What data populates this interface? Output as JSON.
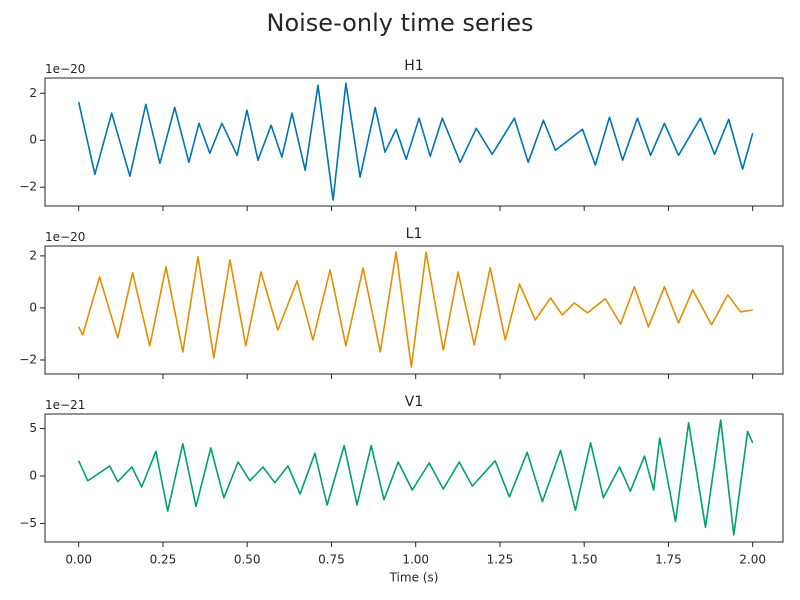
{
  "title": "Noise-only time series",
  "chart_data": [
    {
      "type": "line",
      "title": "H1",
      "offset_label": "1e−20",
      "color": "#0173b2",
      "xlim": [
        -0.1,
        2.09
      ],
      "ylim": [
        -2.8,
        2.65
      ],
      "yticks": [
        {
          "value": -2,
          "label": "−2"
        },
        0,
        2
      ],
      "x": [
        0.0,
        0.048,
        0.098,
        0.152,
        0.199,
        0.241,
        0.285,
        0.327,
        0.357,
        0.389,
        0.425,
        0.47,
        0.499,
        0.532,
        0.571,
        0.603,
        0.633,
        0.672,
        0.71,
        0.755,
        0.793,
        0.835,
        0.88,
        0.909,
        0.942,
        0.972,
        1.01,
        1.043,
        1.079,
        1.132,
        1.18,
        1.227,
        1.293,
        1.334,
        1.379,
        1.415,
        1.495,
        1.533,
        1.575,
        1.614,
        1.658,
        1.697,
        1.738,
        1.78,
        1.845,
        1.887,
        1.929,
        1.97,
        2.0
      ],
      "values": [
        1.62,
        -1.45,
        1.15,
        -1.53,
        1.53,
        -0.98,
        1.4,
        -0.94,
        0.72,
        -0.55,
        0.72,
        -0.64,
        1.28,
        -0.85,
        0.64,
        -0.72,
        1.15,
        -1.28,
        2.34,
        -2.55,
        2.43,
        -1.57,
        1.4,
        -0.51,
        0.47,
        -0.81,
        0.94,
        -0.68,
        0.94,
        -0.94,
        0.51,
        -0.6,
        0.94,
        -0.94,
        0.85,
        -0.43,
        0.47,
        -1.06,
        0.98,
        -0.85,
        0.94,
        -0.64,
        0.72,
        -0.64,
        0.94,
        -0.6,
        0.89,
        -1.23,
        0.3
      ]
    },
    {
      "type": "line",
      "title": "L1",
      "offset_label": "1e−20",
      "color": "#de8f05",
      "xlim": [
        -0.1,
        2.09
      ],
      "ylim": [
        -2.54,
        2.38
      ],
      "yticks": [
        {
          "value": -2,
          "label": "−2"
        },
        0,
        2
      ],
      "x": [
        0.0,
        0.012,
        0.062,
        0.116,
        0.16,
        0.211,
        0.259,
        0.309,
        0.354,
        0.401,
        0.449,
        0.496,
        0.541,
        0.591,
        0.648,
        0.695,
        0.746,
        0.793,
        0.844,
        0.895,
        0.942,
        0.987,
        1.031,
        1.082,
        1.126,
        1.174,
        1.221,
        1.266,
        1.308,
        1.355,
        1.4,
        1.435,
        1.471,
        1.51,
        1.563,
        1.608,
        1.649,
        1.691,
        1.738,
        1.78,
        1.822,
        1.878,
        1.926,
        1.964,
        2.0
      ],
      "values": [
        -0.73,
        -1.04,
        1.19,
        -1.15,
        1.35,
        -1.46,
        1.58,
        -1.69,
        1.96,
        -1.92,
        1.85,
        -1.46,
        1.38,
        -0.85,
        1.04,
        -1.23,
        1.46,
        -1.46,
        1.54,
        -1.69,
        2.15,
        -2.27,
        2.15,
        -1.62,
        1.38,
        -1.42,
        1.54,
        -1.23,
        0.92,
        -0.46,
        0.38,
        -0.27,
        0.19,
        -0.19,
        0.35,
        -0.62,
        0.81,
        -0.73,
        0.81,
        -0.58,
        0.69,
        -0.65,
        0.5,
        -0.15,
        -0.08
      ]
    },
    {
      "type": "line",
      "title": "V1",
      "offset_label": "1e−21",
      "color": "#029e73",
      "xlim": [
        -0.1,
        2.09
      ],
      "ylim": [
        -6.95,
        6.53
      ],
      "yticks": [
        {
          "value": -5,
          "label": "−5"
        },
        0,
        5
      ],
      "xlabel": "Time (s)",
      "xticks": [
        {
          "value": 0,
          "label": "0.00"
        },
        {
          "value": 0.25,
          "label": "0.25"
        },
        {
          "value": 0.5,
          "label": "0.50"
        },
        {
          "value": 0.75,
          "label": "0.75"
        },
        {
          "value": 1,
          "label": "1.00"
        },
        {
          "value": 1.25,
          "label": "1.25"
        },
        {
          "value": 1.5,
          "label": "1.50"
        },
        {
          "value": 1.75,
          "label": "1.75"
        },
        {
          "value": 2,
          "label": "2.00"
        }
      ],
      "x": [
        0.0,
        0.027,
        0.092,
        0.116,
        0.158,
        0.187,
        0.229,
        0.264,
        0.309,
        0.348,
        0.392,
        0.431,
        0.473,
        0.508,
        0.547,
        0.582,
        0.621,
        0.657,
        0.701,
        0.737,
        0.788,
        0.826,
        0.868,
        0.906,
        0.948,
        0.99,
        1.04,
        1.082,
        1.129,
        1.168,
        1.236,
        1.278,
        1.331,
        1.376,
        1.43,
        1.474,
        1.519,
        1.557,
        1.605,
        1.637,
        1.679,
        1.706,
        1.724,
        1.771,
        1.81,
        1.86,
        1.905,
        1.944,
        1.985,
        2.0
      ],
      "values": [
        1.6,
        -0.5,
        1.05,
        -0.6,
        0.95,
        -1.16,
        2.6,
        -3.7,
        3.4,
        -3.2,
        2.95,
        -2.3,
        1.47,
        -0.5,
        0.95,
        -0.7,
        1.05,
        -1.9,
        2.4,
        -3.05,
        3.2,
        -3.05,
        3.2,
        -2.5,
        1.47,
        -1.47,
        1.37,
        -1.37,
        1.47,
        -1.05,
        1.6,
        -2.2,
        2.5,
        -2.7,
        2.7,
        -3.6,
        3.5,
        -2.3,
        0.95,
        -1.6,
        2.1,
        -1.47,
        4.0,
        -4.8,
        5.6,
        -5.4,
        5.9,
        -6.2,
        4.7,
        3.5
      ]
    }
  ]
}
